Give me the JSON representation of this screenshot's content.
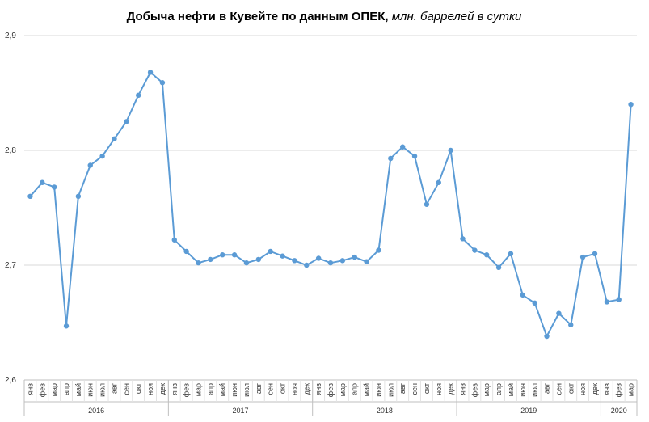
{
  "chart_data": {
    "type": "line",
    "title": "Добыча  нефти в Кувейте по данным  ОПЕК,",
    "subtitle": " млн. баррелей в сутки",
    "xlabel": "",
    "ylabel": "",
    "ylim": [
      2.6,
      2.9
    ],
    "yticks": [
      "2,6",
      "2,7",
      "2,8",
      "2,9"
    ],
    "grid": true,
    "legend": "none",
    "colors": {
      "line": "#5b9bd5",
      "grid": "#d9d9d9",
      "axis": "#bfbfbf"
    },
    "years": [
      {
        "label": "2016",
        "count": 12
      },
      {
        "label": "2017",
        "count": 12
      },
      {
        "label": "2018",
        "count": 12
      },
      {
        "label": "2019",
        "count": 12
      },
      {
        "label": "2020",
        "count": 3
      }
    ],
    "categories": [
      "янв",
      "фев",
      "мар",
      "апр",
      "май",
      "июн",
      "июл",
      "авг",
      "сен",
      "окт",
      "ноя",
      "дек",
      "янв",
      "фев",
      "мар",
      "апр",
      "май",
      "июн",
      "июл",
      "авг",
      "сен",
      "окт",
      "ноя",
      "дек",
      "янв",
      "фев",
      "мар",
      "апр",
      "май",
      "июн",
      "июл",
      "авг",
      "сен",
      "окт",
      "ноя",
      "дек",
      "янв",
      "фев",
      "мар",
      "апр",
      "май",
      "июн",
      "июл",
      "авг",
      "сен",
      "окт",
      "ноя",
      "дек",
      "янв",
      "фев",
      "мар"
    ],
    "series": [
      {
        "values": [
          2.76,
          2.772,
          2.768,
          2.647,
          2.76,
          2.787,
          2.795,
          2.81,
          2.825,
          2.848,
          2.868,
          2.859,
          2.722,
          2.712,
          2.702,
          2.705,
          2.709,
          2.709,
          2.702,
          2.705,
          2.712,
          2.708,
          2.704,
          2.7,
          2.706,
          2.702,
          2.704,
          2.707,
          2.703,
          2.713,
          2.793,
          2.803,
          2.795,
          2.753,
          2.772,
          2.8,
          2.723,
          2.713,
          2.709,
          2.698,
          2.71,
          2.674,
          2.667,
          2.638,
          2.658,
          2.648,
          2.707,
          2.71,
          2.668,
          2.67,
          2.84
        ]
      }
    ]
  }
}
